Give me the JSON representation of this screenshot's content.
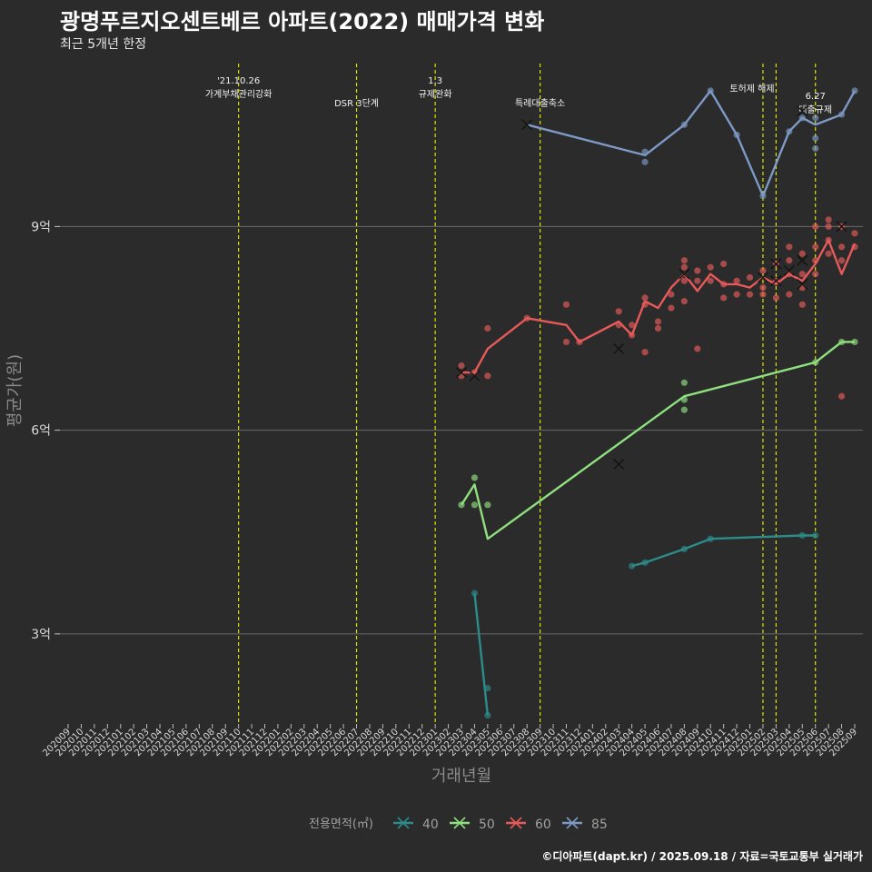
{
  "header": {
    "title": "광명푸르지오센트베르 아파트(2022) 매매가격 변화",
    "subtitle": "최근 5개년 한정",
    "caption": "©디아파트(dapt.kr) / 2025.09.18 / 자료=국토교통부 실거래가"
  },
  "chart_data": {
    "type": "line",
    "title": "광명푸르지오센트베르 아파트(2022) 매매가격 변화",
    "xlabel": "거래년월",
    "ylabel": "평균가(원)",
    "x": [
      "202009",
      "202010",
      "202011",
      "202012",
      "202101",
      "202102",
      "202103",
      "202104",
      "202105",
      "202106",
      "202107",
      "202108",
      "202109",
      "202110",
      "202111",
      "202112",
      "202201",
      "202202",
      "202203",
      "202204",
      "202205",
      "202206",
      "202207",
      "202208",
      "202209",
      "202210",
      "202211",
      "202212",
      "202301",
      "202302",
      "202303",
      "202304",
      "202305",
      "202306",
      "202307",
      "202308",
      "202309",
      "202310",
      "202311",
      "202312",
      "202401",
      "202402",
      "202403",
      "202404",
      "202405",
      "202406",
      "202407",
      "202408",
      "202409",
      "202410",
      "202411",
      "202412",
      "202501",
      "202502",
      "202503",
      "202504",
      "202505",
      "202506",
      "202507",
      "202508",
      "202509"
    ],
    "ylim": [
      1.7,
      11.4
    ],
    "yticks": [
      {
        "value": 3,
        "label": "3억"
      },
      {
        "value": 6,
        "label": "6억"
      },
      {
        "value": 9,
        "label": "9억"
      }
    ],
    "legend": {
      "title": "전용면적(㎡)",
      "position": "bottom"
    },
    "colors": {
      "40": "#2b8c8a",
      "50": "#8fe07f",
      "60": "#e85a5a",
      "85": "#7d9ac6",
      "event": "#d6e600"
    },
    "events": [
      {
        "month": "202110",
        "lines": [
          "'21.10.26",
          "가계부채관리강화"
        ]
      },
      {
        "month": "202207",
        "lines": [
          "DSR 3단계"
        ]
      },
      {
        "month": "202301",
        "lines": [
          "1.3",
          "규제완화"
        ]
      },
      {
        "month": "202309",
        "lines": [
          "특례대출축소"
        ]
      },
      {
        "month": "202502",
        "lines": [
          "토허제 해제"
        ]
      },
      {
        "month": "202503",
        "lines": [
          ""
        ]
      },
      {
        "month": "202506",
        "lines": [
          "6.27",
          "대출규제"
        ]
      }
    ],
    "series": [
      {
        "name": "40",
        "line": [
          [
            "202304",
            3.6
          ],
          [
            "202305",
            1.8
          ]
        ],
        "line2": [
          [
            "202404",
            4.0
          ],
          [
            "202405",
            4.05
          ],
          [
            "202408",
            4.25
          ],
          [
            "202410",
            4.4
          ],
          [
            "202505",
            4.45
          ],
          [
            "202506",
            4.45
          ]
        ],
        "points": [
          [
            "202304",
            3.6
          ],
          [
            "202305",
            2.2
          ],
          [
            "202305",
            1.8
          ],
          [
            "202404",
            4.0
          ],
          [
            "202405",
            4.05
          ],
          [
            "202408",
            4.25
          ],
          [
            "202410",
            4.4
          ],
          [
            "202505",
            4.45
          ],
          [
            "202506",
            4.45
          ]
        ],
        "crosses": []
      },
      {
        "name": "50",
        "line": [
          [
            "202303",
            4.9
          ],
          [
            "202304",
            5.2
          ],
          [
            "202305",
            4.4
          ],
          [
            "202408",
            6.5
          ],
          [
            "202506",
            7.0
          ],
          [
            "202508",
            7.3
          ],
          [
            "202509",
            7.3
          ]
        ],
        "points": [
          [
            "202303",
            4.9
          ],
          [
            "202304",
            4.9
          ],
          [
            "202304",
            5.3
          ],
          [
            "202305",
            4.9
          ],
          [
            "202408",
            6.7
          ],
          [
            "202408",
            6.45
          ],
          [
            "202408",
            6.3
          ],
          [
            "202506",
            7.0
          ],
          [
            "202508",
            7.3
          ],
          [
            "202509",
            7.3
          ]
        ],
        "crosses": [
          [
            "202403",
            5.5
          ]
        ]
      },
      {
        "name": "60",
        "line": [
          [
            "202303",
            6.85
          ],
          [
            "202304",
            6.85
          ],
          [
            "202305",
            7.2
          ],
          [
            "202308",
            7.65
          ],
          [
            "202311",
            7.55
          ],
          [
            "202312",
            7.3
          ],
          [
            "202403",
            7.6
          ],
          [
            "202404",
            7.4
          ],
          [
            "202405",
            7.9
          ],
          [
            "202406",
            7.8
          ],
          [
            "202407",
            8.1
          ],
          [
            "202408",
            8.3
          ],
          [
            "202409",
            8.05
          ],
          [
            "202410",
            8.3
          ],
          [
            "202411",
            8.15
          ],
          [
            "202412",
            8.15
          ],
          [
            "202501",
            8.1
          ],
          [
            "202502",
            8.25
          ],
          [
            "202503",
            8.15
          ],
          [
            "202504",
            8.3
          ],
          [
            "202505",
            8.2
          ],
          [
            "202506",
            8.45
          ],
          [
            "202507",
            8.8
          ],
          [
            "202508",
            8.3
          ],
          [
            "202509",
            8.75
          ]
        ],
        "points": [
          [
            "202303",
            6.95
          ],
          [
            "202303",
            6.8
          ],
          [
            "202304",
            6.85
          ],
          [
            "202305",
            6.8
          ],
          [
            "202305",
            7.5
          ],
          [
            "202308",
            7.65
          ],
          [
            "202311",
            7.85
          ],
          [
            "202311",
            7.3
          ],
          [
            "202312",
            7.3
          ],
          [
            "202403",
            7.75
          ],
          [
            "202403",
            7.55
          ],
          [
            "202404",
            7.55
          ],
          [
            "202404",
            7.4
          ],
          [
            "202405",
            7.95
          ],
          [
            "202405",
            7.85
          ],
          [
            "202405",
            7.15
          ],
          [
            "202406",
            7.6
          ],
          [
            "202406",
            7.5
          ],
          [
            "202407",
            8.0
          ],
          [
            "202407",
            7.8
          ],
          [
            "202408",
            8.5
          ],
          [
            "202408",
            8.4
          ],
          [
            "202408",
            8.2
          ],
          [
            "202408",
            7.9
          ],
          [
            "202409",
            8.35
          ],
          [
            "202409",
            8.2
          ],
          [
            "202409",
            7.2
          ],
          [
            "202410",
            8.4
          ],
          [
            "202410",
            8.2
          ],
          [
            "202411",
            8.45
          ],
          [
            "202411",
            8.15
          ],
          [
            "202411",
            7.95
          ],
          [
            "202412",
            8.2
          ],
          [
            "202412",
            8.0
          ],
          [
            "202501",
            8.25
          ],
          [
            "202501",
            8.0
          ],
          [
            "202502",
            8.35
          ],
          [
            "202502",
            8.1
          ],
          [
            "202502",
            8.0
          ],
          [
            "202503",
            8.45
          ],
          [
            "202503",
            8.2
          ],
          [
            "202503",
            7.95
          ],
          [
            "202504",
            8.7
          ],
          [
            "202504",
            8.5
          ],
          [
            "202504",
            8.3
          ],
          [
            "202504",
            8.0
          ],
          [
            "202505",
            8.6
          ],
          [
            "202505",
            8.3
          ],
          [
            "202505",
            8.1
          ],
          [
            "202505",
            7.85
          ],
          [
            "202506",
            9.0
          ],
          [
            "202506",
            8.7
          ],
          [
            "202506",
            8.5
          ],
          [
            "202506",
            8.3
          ],
          [
            "202507",
            9.1
          ],
          [
            "202507",
            9.0
          ],
          [
            "202507",
            8.8
          ],
          [
            "202507",
            8.6
          ],
          [
            "202508",
            9.0
          ],
          [
            "202508",
            8.7
          ],
          [
            "202508",
            8.5
          ],
          [
            "202508",
            6.5
          ],
          [
            "202509",
            8.9
          ],
          [
            "202509",
            8.7
          ]
        ],
        "crosses": [
          [
            "202303",
            6.85
          ],
          [
            "202304",
            6.8
          ],
          [
            "202403",
            7.2
          ],
          [
            "202408",
            8.3
          ],
          [
            "202502",
            8.25
          ],
          [
            "202503",
            8.45
          ],
          [
            "202503",
            8.2
          ],
          [
            "202504",
            8.35
          ],
          [
            "202505",
            8.5
          ],
          [
            "202505",
            8.15
          ],
          [
            "202508",
            9.0
          ]
        ]
      },
      {
        "name": "85",
        "line": [
          [
            "202308",
            10.5
          ],
          [
            "202405",
            10.05
          ],
          [
            "202408",
            10.5
          ],
          [
            "202410",
            11.0
          ],
          [
            "202412",
            10.35
          ],
          [
            "202502",
            9.45
          ],
          [
            "202504",
            10.4
          ],
          [
            "202505",
            10.6
          ],
          [
            "202506",
            10.5
          ],
          [
            "202508",
            10.65
          ],
          [
            "202509",
            11.0
          ]
        ],
        "points": [
          [
            "202405",
            10.1
          ],
          [
            "202405",
            9.95
          ],
          [
            "202408",
            10.5
          ],
          [
            "202410",
            11.0
          ],
          [
            "202412",
            10.35
          ],
          [
            "202502",
            9.45
          ],
          [
            "202504",
            10.4
          ],
          [
            "202505",
            10.6
          ],
          [
            "202506",
            10.6
          ],
          [
            "202506",
            10.3
          ],
          [
            "202506",
            10.15
          ],
          [
            "202508",
            10.65
          ],
          [
            "202509",
            11.0
          ]
        ],
        "crosses": [
          [
            "202308",
            10.5
          ],
          [
            "202505",
            10.7
          ]
        ]
      }
    ]
  }
}
